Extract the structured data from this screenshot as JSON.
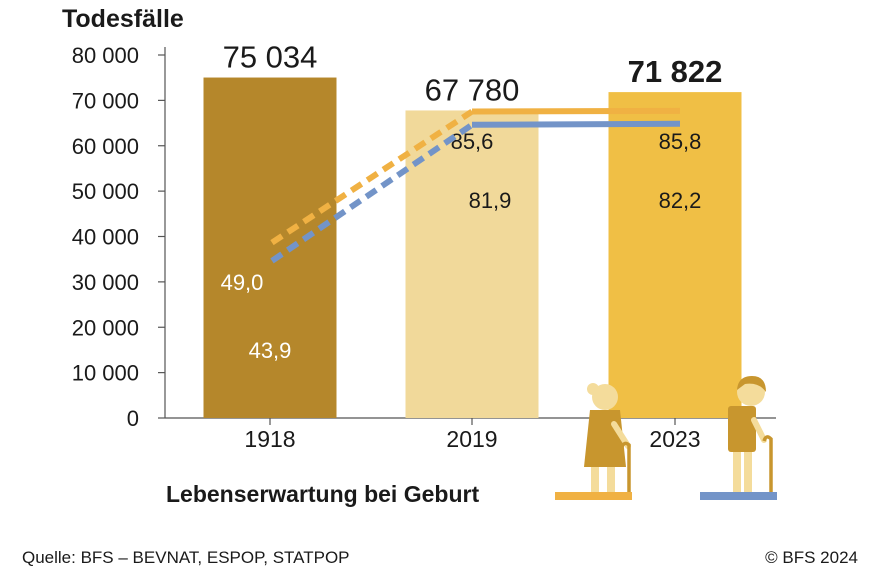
{
  "chart_data": {
    "type": "bar",
    "title": "Todesfälle",
    "categories": [
      "1918",
      "2019",
      "2023"
    ],
    "values": [
      75034,
      67780,
      71822
    ],
    "value_labels": [
      "75 034",
      "67 780",
      "71 822"
    ],
    "ylim": [
      0,
      80000
    ],
    "yticks": [
      0,
      10000,
      20000,
      30000,
      40000,
      50000,
      60000,
      70000,
      80000
    ],
    "ytick_labels": [
      "0",
      "10 000",
      "20 000",
      "30 000",
      "40 000",
      "50 000",
      "60 000",
      "70 000",
      "80 000"
    ],
    "bar_colors": [
      "#b5872b",
      "#f1d99a",
      "#f0bf45"
    ],
    "grid": false,
    "overlay": {
      "type": "line",
      "title": "Lebenserwartung bei Geburt",
      "series": [
        {
          "color": "#f0b143",
          "values": [
            49.0,
            85.6,
            85.8
          ],
          "labels": [
            "49,0",
            "85,6",
            "85,8"
          ]
        },
        {
          "color": "#7394c8",
          "values": [
            43.9,
            81.9,
            82.2
          ],
          "labels": [
            "43,9",
            "81,9",
            "82,2"
          ]
        }
      ],
      "line_style": [
        "dashed",
        "solid"
      ]
    }
  },
  "footer": {
    "source": "Quelle: BFS – BEVNAT, ESPOP, STATPOP",
    "copyright": "© BFS 2024"
  },
  "icons": [
    "elderly-woman-icon",
    "elderly-man-icon"
  ]
}
